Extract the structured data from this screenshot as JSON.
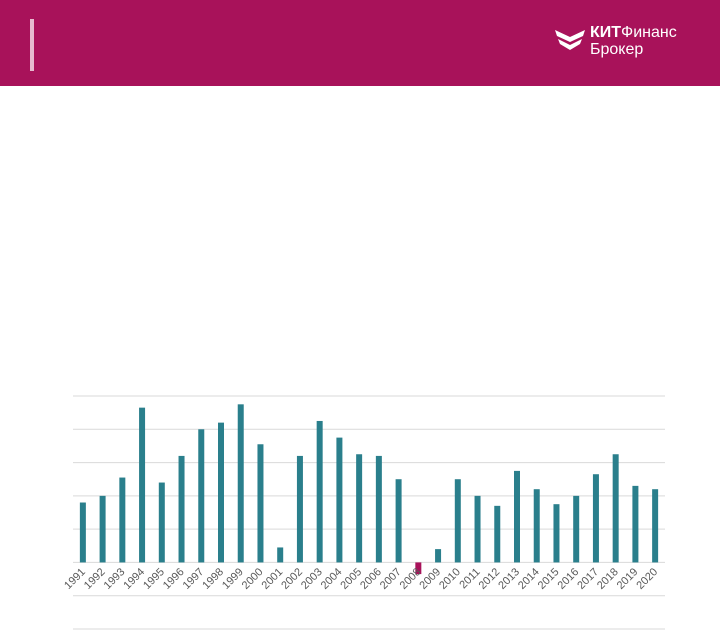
{
  "brand": {
    "name_bold": "КИТ",
    "name_regular": "Финанс",
    "line2": "Брокер",
    "color": "#a8125a"
  },
  "chart_data": {
    "type": "bar",
    "categories": [
      "1991",
      "1992",
      "1993",
      "1994",
      "1995",
      "1996",
      "1997",
      "1998",
      "1999",
      "2000",
      "2001",
      "2002",
      "2003",
      "2004",
      "2005",
      "2006",
      "2007",
      "2008",
      "2009",
      "2010",
      "2011",
      "2012",
      "2013",
      "2014",
      "2015",
      "2016",
      "2017",
      "2018",
      "2019",
      "2020"
    ],
    "values": [
      18,
      20,
      25.5,
      46.5,
      24,
      32,
      40,
      42,
      47.5,
      35.5,
      4.5,
      32,
      42.5,
      37.5,
      32.5,
      32,
      25,
      -3.5,
      4,
      25,
      20,
      17,
      27.5,
      22,
      17.5,
      20,
      26.5,
      32.5,
      23,
      22
    ],
    "ylim": [
      -20,
      50
    ],
    "gridlines": [
      -20,
      -10,
      0,
      10,
      20,
      30,
      40,
      50
    ],
    "positive_color": "#2a7f8c",
    "negative_color": "#a8125a",
    "grid": true,
    "legend": "none"
  }
}
